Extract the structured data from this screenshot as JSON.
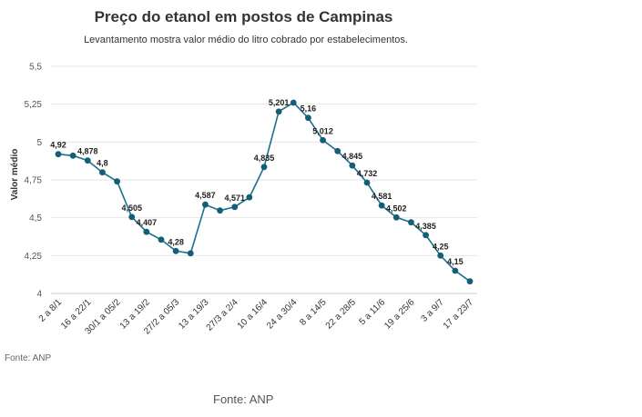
{
  "chart_data": {
    "type": "line",
    "title": "Preço do etanol em postos de Campinas",
    "subtitle": "Levantamento mostra valor médio do litro cobrado por estabelecimentos.",
    "ylabel": "Valor médio",
    "xlabel": "",
    "ylim": [
      4,
      5.5
    ],
    "yticks": [
      "4",
      "4,25",
      "4,5",
      "4,75",
      "5",
      "5,25",
      "5,5"
    ],
    "grid": true,
    "legend": "none",
    "categories": [
      "2 a 8/1",
      "",
      "16 a 22/1",
      "",
      "30/1 a 05/2",
      "",
      "13 a 19/2",
      "",
      "27/2 a 05/3",
      "",
      "13 a 19/3",
      "",
      "27/3 a 2/4",
      "",
      "10 a 16/4",
      "",
      "24 a 30/4",
      "",
      "8 a 14/5",
      "",
      "22 a 28/5",
      "",
      "5 a 11/6",
      "",
      "19 a 25/6",
      "",
      "3 a 9/7",
      "",
      "17 a 23/7"
    ],
    "values": [
      4.92,
      4.91,
      4.878,
      4.8,
      4.74,
      4.505,
      4.407,
      4.355,
      4.28,
      4.265,
      4.587,
      4.548,
      4.571,
      4.635,
      4.835,
      5.201,
      5.26,
      5.16,
      5.012,
      4.94,
      4.845,
      4.732,
      4.581,
      4.502,
      4.47,
      4.385,
      4.25,
      4.15,
      4.08
    ],
    "data_labels": [
      "4,92",
      "",
      "4,878",
      "4,8",
      "",
      "4,505",
      "4,407",
      "",
      "4,28",
      "",
      "4,587",
      "",
      "4,571",
      "",
      "4,835",
      "5,201",
      "",
      "5,16",
      "5,012",
      "",
      "4,845",
      "4,732",
      "4,581",
      "4,502",
      "",
      "4,385",
      "4,25",
      "4,15",
      ""
    ],
    "colors": {
      "line": "#1d6f8a",
      "marker": "#155e78",
      "grid": "#e6e6e6",
      "axis": "#cfcfcf",
      "label": "#222222"
    }
  },
  "source": {
    "small": "Fonte: ANP",
    "large": "Fonte: ANP"
  }
}
